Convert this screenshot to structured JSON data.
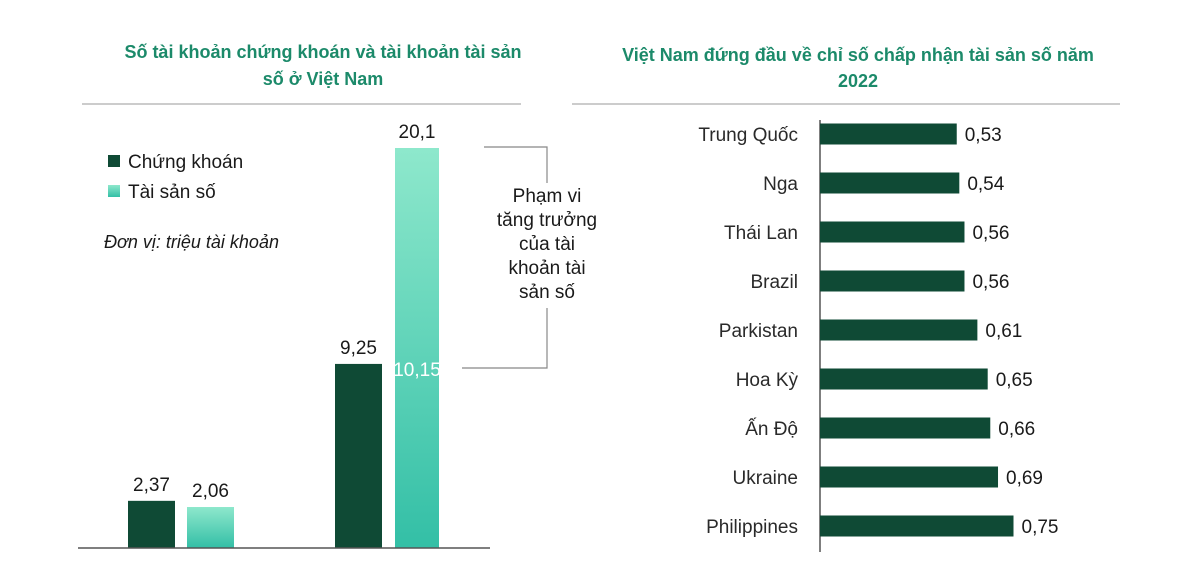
{
  "chart_data": [
    {
      "type": "bar",
      "title_lines": [
        "Số tài khoản chứng khoán và tài khoản tài sản",
        "số ở Việt Nam"
      ],
      "unit": "Đơn vị: triệu tài khoản",
      "groups": [
        "",
        ""
      ],
      "series": [
        {
          "name": "Chứng khoán",
          "color": "#0f4a35",
          "values": [
            2.37,
            9.25
          ],
          "labels": [
            "2,37",
            "9,25"
          ]
        },
        {
          "name": "Tài sản số",
          "color_top": "#8ee8cc",
          "color_bottom": "#33bfa6",
          "values": [
            2.06,
            20.1
          ],
          "labels": [
            "2,06",
            "20,1"
          ]
        }
      ],
      "growth": {
        "value": 10.15,
        "label": "10,15"
      },
      "annotation_lines": [
        "Phạm vi",
        "tăng trưởng",
        "của tài",
        "khoản tài",
        "sản số"
      ],
      "ylim": [
        0,
        20.1
      ]
    },
    {
      "type": "bar",
      "orientation": "horizontal",
      "title_lines": [
        "Việt Nam đứng đầu về chỉ số chấp nhận tài sản số năm",
        "2022"
      ],
      "categories": [
        "Trung Quốc",
        "Nga",
        "Thái Lan",
        "Brazil",
        "Parkistan",
        "Hoa Kỳ",
        "Ấn Độ",
        "Ukraine",
        "Philippines"
      ],
      "values": [
        0.53,
        0.54,
        0.56,
        0.56,
        0.61,
        0.65,
        0.66,
        0.69,
        0.75
      ],
      "labels": [
        "0,53",
        "0,54",
        "0,56",
        "0,56",
        "0,61",
        "0,65",
        "0,66",
        "0,69",
        "0,75"
      ],
      "color": "#0f4a35"
    }
  ]
}
